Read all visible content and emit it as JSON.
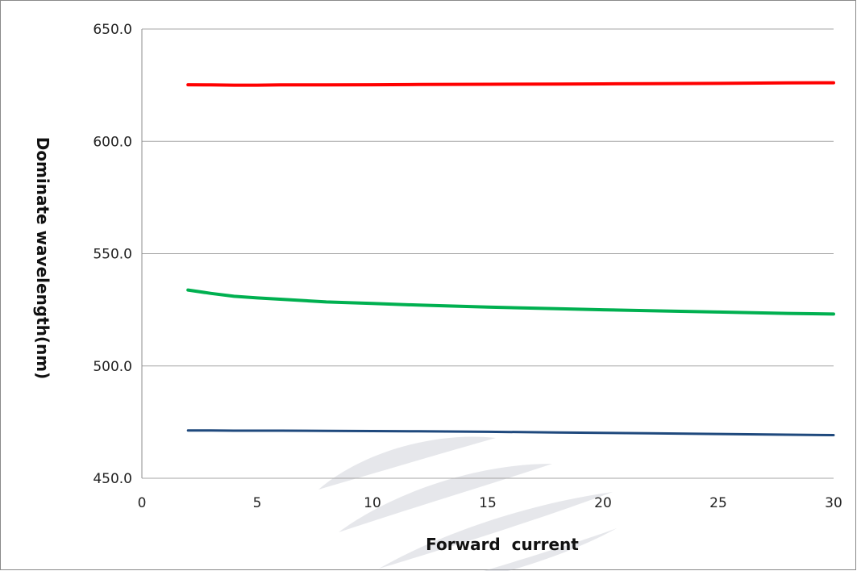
{
  "chart_data": {
    "type": "line",
    "title": "",
    "xlabel": "Forward  current",
    "ylabel": "Dominate wavelength(nm)",
    "xlim": [
      0,
      30
    ],
    "ylim": [
      450,
      650
    ],
    "x_ticks": [
      "0",
      "5",
      "10",
      "15",
      "20",
      "25",
      "30"
    ],
    "y_ticks": [
      "450.0",
      "500.0",
      "550.0",
      "600.0",
      "650.0"
    ],
    "grid": "horizontal",
    "legend": "none",
    "x": [
      2,
      3,
      4,
      5,
      6,
      8,
      10,
      12,
      15,
      18,
      20,
      22,
      25,
      28,
      30
    ],
    "series": [
      {
        "color": "#ff0000",
        "values": [
          625.2,
          625.1,
          625.0,
          625.0,
          625.1,
          625.1,
          625.2,
          625.3,
          625.4,
          625.5,
          625.6,
          625.7,
          625.8,
          626.0,
          626.1
        ]
      },
      {
        "color": "#00b050",
        "values": [
          533.8,
          532.3,
          531.0,
          530.3,
          529.7,
          528.5,
          527.8,
          527.1,
          526.2,
          525.5,
          525.0,
          524.6,
          524.0,
          523.4,
          523.1
        ]
      },
      {
        "color": "#1f497d",
        "values": [
          471.3,
          471.3,
          471.2,
          471.2,
          471.2,
          471.1,
          471.0,
          470.9,
          470.7,
          470.4,
          470.2,
          470.0,
          469.7,
          469.4,
          469.2
        ]
      }
    ]
  }
}
